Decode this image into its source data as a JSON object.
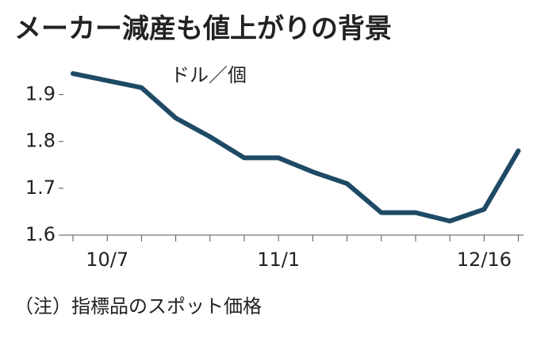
{
  "chart_data": {
    "type": "line",
    "title": "メーカー減産も値上がりの背景",
    "y_label": "ドル／個",
    "note": "（注）指標品のスポット価格",
    "categories": [
      null,
      "10/7",
      null,
      null,
      null,
      null,
      "11/1",
      null,
      null,
      null,
      null,
      null,
      "12/16",
      null
    ],
    "series": [
      {
        "color": "#1e4a66",
        "values": [
          1.945,
          1.93,
          1.915,
          1.85,
          1.81,
          1.765,
          1.765,
          1.735,
          1.71,
          1.648,
          1.648,
          1.63,
          1.655,
          1.78
        ]
      }
    ],
    "ylim": [
      1.6,
      1.95
    ],
    "yticks": [
      1.6,
      1.7,
      1.8,
      1.9
    ]
  }
}
